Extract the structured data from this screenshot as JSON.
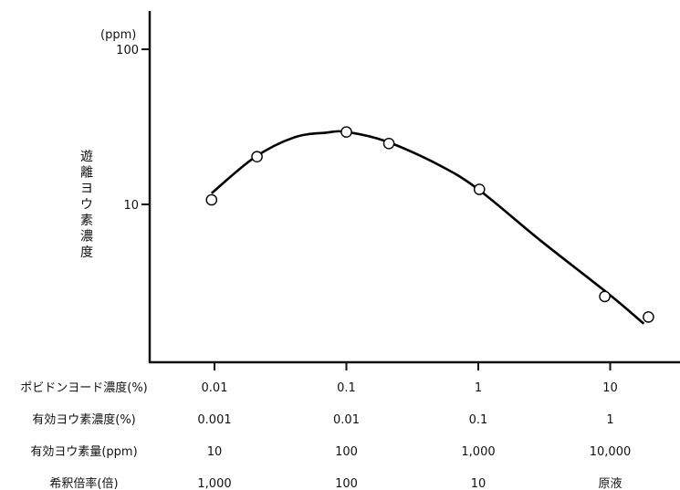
{
  "chart_data": {
    "type": "scatter",
    "title": "",
    "ylabel": "遊離ヨウ素濃度",
    "yunit": "(ppm)",
    "yscale": "log",
    "ylim": [
      1.5,
      200
    ],
    "yticks": [
      {
        "value": 100,
        "label": "100"
      },
      {
        "value": 10,
        "label": "10"
      }
    ],
    "xscale": "log",
    "x_quantity": "ポビドンヨード濃度(%)",
    "xlim": [
      0.0045,
      45
    ],
    "xticks": [
      0.01,
      0.1,
      1,
      10
    ],
    "series": [
      {
        "points": [
          {
            "x": 0.0095,
            "y": 10.7
          },
          {
            "x": 0.021,
            "y": 20.3
          },
          {
            "x": 0.1,
            "y": 29.3
          },
          {
            "x": 0.21,
            "y": 24.7
          },
          {
            "x": 1.02,
            "y": 12.5
          },
          {
            "x": 9.1,
            "y": 2.55
          },
          {
            "x": 19.5,
            "y": 1.88
          }
        ],
        "fit_curve": [
          {
            "x": 0.0095,
            "y": 11.8
          },
          {
            "x": 0.02,
            "y": 20.0
          },
          {
            "x": 0.04,
            "y": 27.0
          },
          {
            "x": 0.07,
            "y": 29.0
          },
          {
            "x": 0.1,
            "y": 29.3
          },
          {
            "x": 0.2,
            "y": 25.5
          },
          {
            "x": 0.5,
            "y": 18.0
          },
          {
            "x": 1.0,
            "y": 12.5
          },
          {
            "x": 3.0,
            "y": 5.8
          },
          {
            "x": 10.0,
            "y": 2.6
          },
          {
            "x": 18.0,
            "y": 1.7
          }
        ]
      }
    ],
    "table_rows": [
      {
        "label": "ポビドンヨード濃度(%)",
        "values": [
          "0.01",
          "0.1",
          "1",
          "10"
        ]
      },
      {
        "label": "有効ヨウ素濃度(%)",
        "values": [
          "0.001",
          "0.01",
          "0.1",
          "1"
        ]
      },
      {
        "label": "有効ヨウ素量(ppm)",
        "values": [
          "10",
          "100",
          "1,000",
          "10,000"
        ]
      },
      {
        "label": "希釈倍率(倍)",
        "values": [
          "1,000",
          "100",
          "10",
          "原液"
        ]
      }
    ]
  }
}
